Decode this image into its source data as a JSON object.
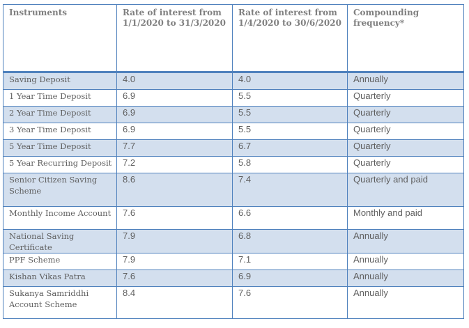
{
  "table": {
    "headers": [
      "Instruments",
      "Rate of interest from 1/1/2020 to 31/3/2020",
      "Rate of interest from 1/4/2020 to 30/6/2020",
      "Compounding frequency*"
    ],
    "rows": [
      [
        "Saving  Deposit",
        "4.0",
        "4.0",
        "Annually"
      ],
      [
        "1 Year Time Deposit",
        "6.9",
        "5.5",
        "Quarterly"
      ],
      [
        "2 Year Time Deposit",
        "6.9",
        "5.5",
        "Quarterly"
      ],
      [
        "3 Year Time Deposit",
        "6.9",
        "5.5",
        "Quarterly"
      ],
      [
        "5 Year Time Deposit",
        "7.7",
        "6.7",
        "Quarterly"
      ],
      [
        "5 Year Recurring Deposit",
        "7.2",
        "5.8",
        "Quarterly"
      ],
      [
        "Senior Citizen Saving Scheme",
        "8.6",
        "7.4",
        "Quarterly and paid"
      ],
      [
        "Monthly Income Account",
        "7.6",
        "6.6",
        "Monthly and paid"
      ],
      [
        "National Saving Certificate",
        "7.9",
        "6.8",
        "Annually"
      ],
      [
        "PPF Scheme",
        "7.9",
        "7.1",
        "Annually"
      ],
      [
        "Kishan Vikas Patra",
        "7.6",
        "6.9",
        "Annually"
      ],
      [
        "Sukanya Samriddhi Account Scheme",
        "8.4",
        "7.6",
        "Annually"
      ]
    ]
  },
  "colors": {
    "border": "#4f81bd",
    "shaded_row": "#d3dfee",
    "text": "#5f5f5f"
  }
}
